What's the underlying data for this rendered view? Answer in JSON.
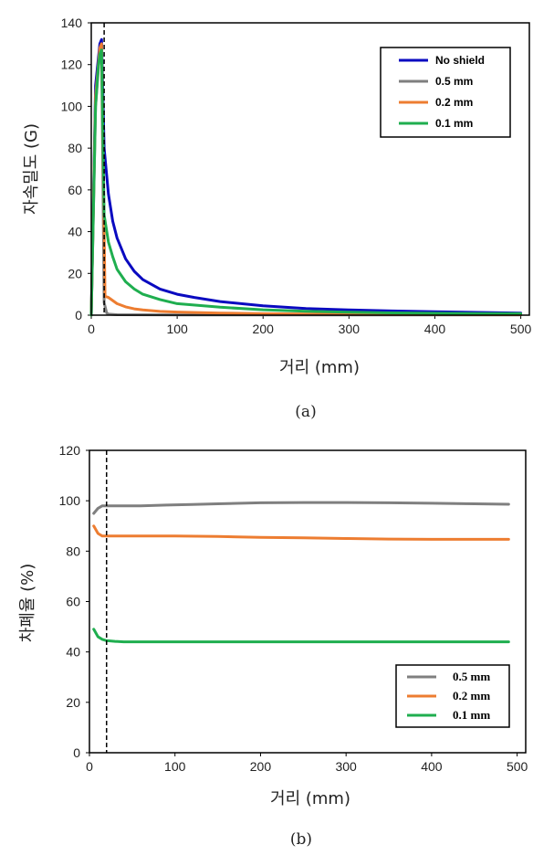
{
  "chart_data": [
    {
      "type": "line",
      "panel_label": "(a)",
      "xlabel": "거리 (mm)",
      "ylabel": "자속밀도 (G)",
      "xlim": [
        0,
        510
      ],
      "ylim": [
        0,
        140
      ],
      "xticks": [
        0,
        100,
        200,
        300,
        400,
        500
      ],
      "yticks": [
        0,
        20,
        40,
        60,
        80,
        100,
        120,
        140
      ],
      "reference_line_x": 15,
      "legend_position": "top-right",
      "series": [
        {
          "name": "No shield",
          "color": "#0a0ac0",
          "x": [
            0,
            5,
            10,
            12,
            15,
            20,
            25,
            30,
            40,
            50,
            60,
            80,
            100,
            120,
            150,
            200,
            250,
            300,
            350,
            400,
            450,
            500
          ],
          "y": [
            0,
            110,
            130,
            132,
            80,
            58,
            45,
            37,
            27,
            21,
            17,
            12.5,
            10,
            8.5,
            6.5,
            4.5,
            3.2,
            2.5,
            2,
            1.6,
            1.3,
            1.0
          ]
        },
        {
          "name": "0.5 mm",
          "color": "#7f7f7f",
          "x": [
            0,
            5,
            10,
            12,
            15,
            18,
            20,
            30,
            100,
            500
          ],
          "y": [
            0,
            100,
            127,
            128,
            6,
            1,
            0.5,
            0.2,
            0.1,
            0.1
          ]
        },
        {
          "name": "0.2 mm",
          "color": "#ed7d31",
          "x": [
            0,
            5,
            10,
            12,
            15,
            16,
            20,
            25,
            30,
            40,
            50,
            60,
            80,
            100,
            150,
            200,
            300,
            400,
            500
          ],
          "y": [
            0,
            105,
            128,
            130,
            40,
            9,
            8.5,
            7,
            5.5,
            4,
            3,
            2.5,
            1.8,
            1.5,
            1.0,
            0.7,
            0.4,
            0.3,
            0.2
          ]
        },
        {
          "name": "0.1 mm",
          "color": "#1fae4f",
          "x": [
            0,
            5,
            8,
            10,
            12,
            15,
            20,
            25,
            30,
            40,
            50,
            60,
            80,
            100,
            150,
            200,
            250,
            300,
            350,
            400,
            450,
            500
          ],
          "y": [
            0,
            100,
            118,
            125,
            127,
            48,
            35,
            28,
            22,
            16,
            12.5,
            10,
            7.5,
            5.5,
            3.8,
            2.6,
            1.9,
            1.4,
            1.1,
            0.9,
            0.8,
            0.7
          ]
        }
      ]
    },
    {
      "type": "line",
      "panel_label": "(b)",
      "xlabel": "거리 (mm)",
      "ylabel": "차폐율 (%)",
      "xlim": [
        0,
        510
      ],
      "ylim": [
        0,
        120
      ],
      "xticks": [
        0,
        100,
        200,
        300,
        400,
        500
      ],
      "yticks": [
        0,
        20,
        40,
        60,
        80,
        100,
        120
      ],
      "reference_line_x": 20,
      "legend_position": "bottom-right",
      "series": [
        {
          "name": "0.5 mm",
          "color": "#7f7f7f",
          "x": [
            5,
            10,
            15,
            30,
            60,
            90,
            120,
            150,
            200,
            250,
            300,
            350,
            400,
            450,
            490
          ],
          "y": [
            95,
            97,
            98,
            98,
            98,
            98.3,
            98.5,
            98.8,
            99.2,
            99.3,
            99.3,
            99.2,
            99,
            98.8,
            98.6
          ]
        },
        {
          "name": "0.2 mm",
          "color": "#ed7d31",
          "x": [
            5,
            10,
            15,
            30,
            60,
            100,
            150,
            200,
            250,
            300,
            350,
            400,
            450,
            490
          ],
          "y": [
            90,
            87,
            86,
            86,
            86,
            86,
            85.8,
            85.5,
            85.3,
            85,
            84.8,
            84.7,
            84.7,
            84.7
          ]
        },
        {
          "name": "0.1 mm",
          "color": "#1fae4f",
          "x": [
            5,
            10,
            15,
            20,
            30,
            40,
            100,
            200,
            300,
            400,
            490
          ],
          "y": [
            49,
            46,
            45,
            44.5,
            44.2,
            44,
            44,
            44,
            44,
            44,
            44
          ]
        }
      ]
    }
  ]
}
